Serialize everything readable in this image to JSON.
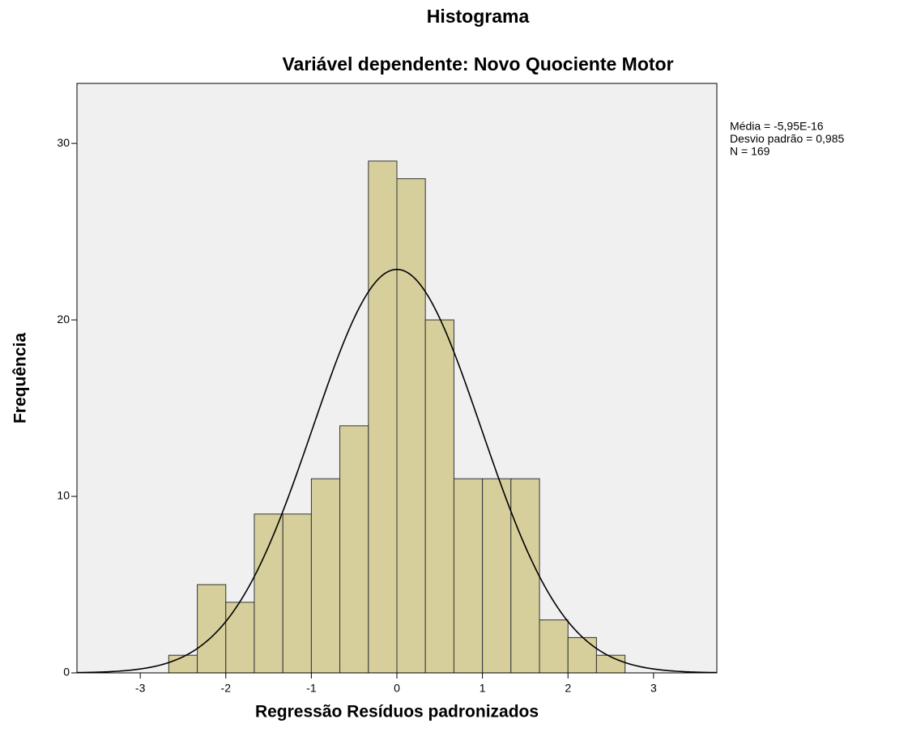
{
  "chart_data": {
    "type": "histogram",
    "title": "Histograma",
    "subtitle": "Variável dependente: Novo Quociente Motor",
    "xlabel": "Regressão Resíduos padronizados",
    "ylabel": "Frequência",
    "bins": [
      -2.667,
      -2.333,
      -2,
      -1.667,
      -1.333,
      -1,
      -0.667,
      -0.333,
      0,
      0.333,
      0.667,
      1,
      1.333,
      1.667,
      2,
      2.333,
      2.667
    ],
    "values": [
      1,
      5,
      4,
      9,
      9,
      11,
      14,
      29,
      28,
      20,
      11,
      11,
      11,
      3,
      2,
      1
    ],
    "color": "#d6cf9c",
    "xlim": [
      -3.74,
      3.74
    ],
    "xticks": [
      -3,
      -2,
      -1,
      0,
      1,
      2,
      3
    ],
    "ylim": [
      0,
      33.4
    ],
    "yticks": [
      0,
      10,
      20,
      30
    ],
    "stats": [
      {
        "label": "Média = -5,95E-16",
        "value": -5.95e-16
      },
      {
        "label": "Desvio padrão = 0,985",
        "value": 0.985
      },
      {
        "label": "N = 169",
        "value": 169
      }
    ]
  }
}
